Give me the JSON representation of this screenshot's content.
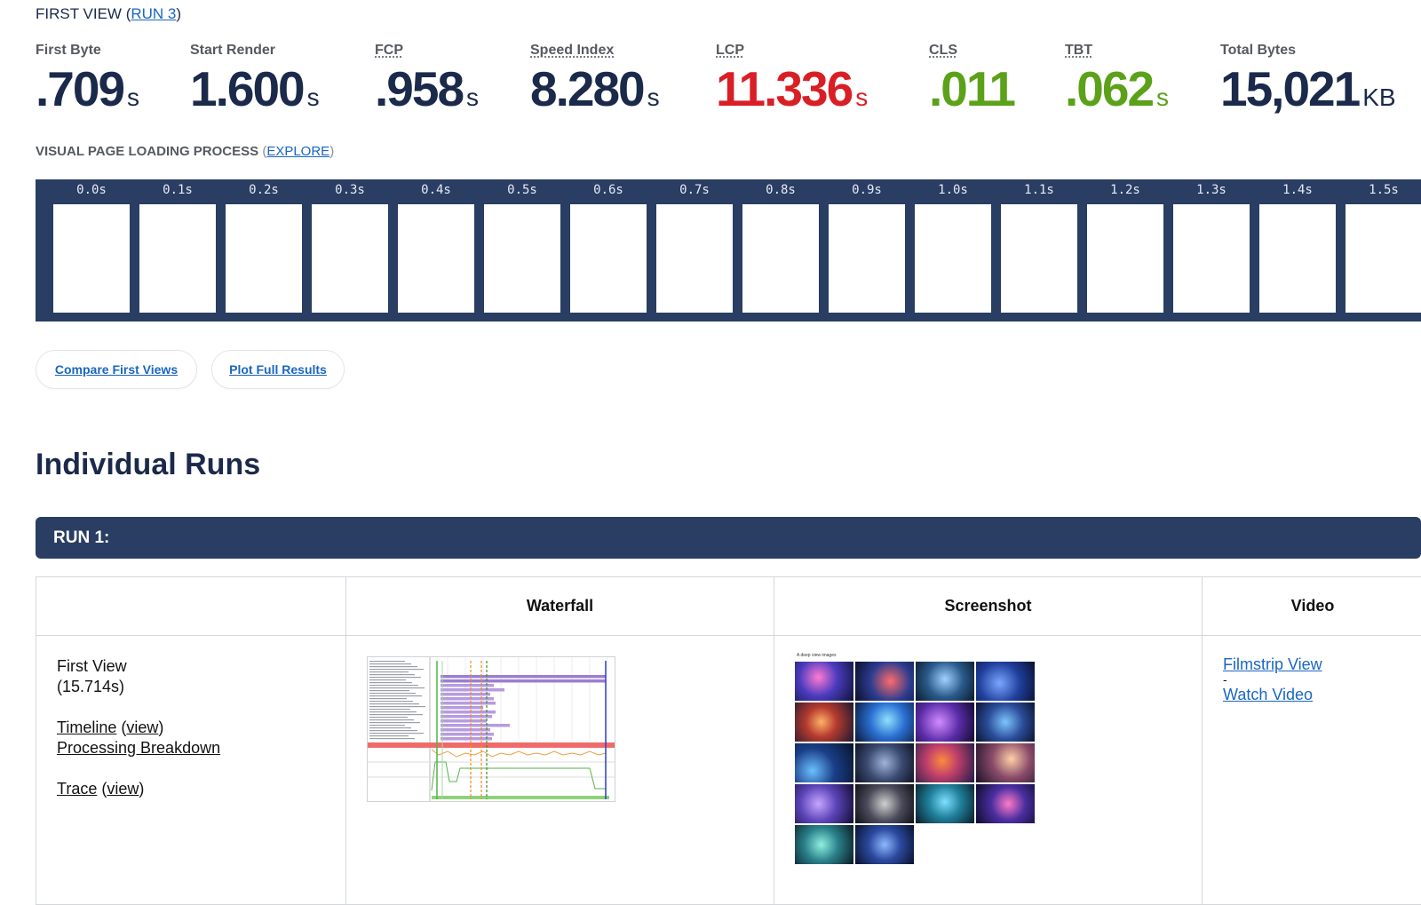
{
  "first_view": {
    "prefix": "FIRST VIEW (",
    "run_link": "RUN 3",
    "suffix": ")"
  },
  "metrics": [
    {
      "label": "First Byte",
      "value": ".709",
      "unit": "s",
      "status": "normal"
    },
    {
      "label": "Start Render",
      "value": "1.600",
      "unit": "s",
      "status": "normal"
    },
    {
      "label": "FCP",
      "value": ".958",
      "unit": "s",
      "status": "normal"
    },
    {
      "label": "Speed Index",
      "value": "8.280",
      "unit": "s",
      "status": "normal"
    },
    {
      "label": "LCP",
      "value": "11.336",
      "unit": "s",
      "status": "bad"
    },
    {
      "label": "CLS",
      "value": ".011",
      "unit": "",
      "status": "good"
    },
    {
      "label": "TBT",
      "value": ".062",
      "unit": "s",
      "status": "good"
    },
    {
      "label": "Total Bytes",
      "value": "15,021",
      "unit": "KB",
      "status": "normal"
    }
  ],
  "visual_loading": {
    "title": "VISUAL PAGE LOADING PROCESS",
    "open_paren": "(",
    "explore_link": "EXPLORE",
    "close_paren": ")"
  },
  "filmstrip": {
    "times": [
      "0.0s",
      "0.1s",
      "0.2s",
      "0.3s",
      "0.4s",
      "0.5s",
      "0.6s",
      "0.7s",
      "0.8s",
      "0.9s",
      "1.0s",
      "1.1s",
      "1.2s",
      "1.3s",
      "1.4s",
      "1.5s"
    ]
  },
  "buttons": {
    "compare": "Compare First Views",
    "plot": "Plot Full Results"
  },
  "individual_runs": {
    "title": "Individual Runs",
    "run_label": "RUN 1:",
    "columns": {
      "first": "",
      "waterfall": "Waterfall",
      "screenshot": "Screenshot",
      "video": "Video"
    },
    "first_view_cell": {
      "title": "First View",
      "duration": "(15.714s)",
      "timeline": "Timeline",
      "view": "view",
      "processing": "Processing Breakdown",
      "trace": "Trace"
    },
    "screenshot_caption": "A deep view images",
    "video_cell": {
      "filmstrip": "Filmstrip View",
      "dash": "-",
      "watch": "Watch Video"
    }
  },
  "colors": {
    "navy": "#2a3d63",
    "link": "#1a66c2",
    "bad": "#d91f26",
    "good": "#5ca11a",
    "label_gray": "#555a60"
  }
}
